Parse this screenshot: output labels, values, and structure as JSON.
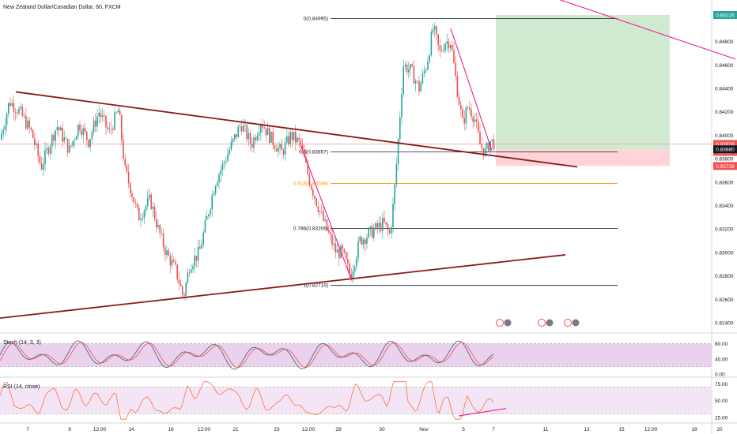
{
  "header": {
    "title": "New Zealand Dollar/Canadian Dollar, 60, FXCM"
  },
  "colors": {
    "up": "#26a69a",
    "down": "#ef5350",
    "trendline": "#8b1a1a",
    "pink_line": "#e91e8c",
    "fib_orange": "#ff9800",
    "fib_grey": "#787b86",
    "stoch_fill": "#e1bee7",
    "rsi_fill": "#f3e5f5",
    "rsi_line": "#ff7043",
    "long_profit": "#c8e6c9",
    "long_stop": "#ffcdd2"
  },
  "chart_data": {
    "type": "candlestick",
    "symbol": "New Zealand Dollar/Canadian Dollar, 60, FXCM",
    "ylim": [
      0.8234,
      0.851
    ],
    "y_ticks": [
      "0.85026",
      "0.84800",
      "0.84600",
      "0.84400",
      "0.84200",
      "0.84000",
      "0.83926",
      "0.83880",
      "0.83800",
      "0.83738",
      "0.83600",
      "0.83400",
      "0.83200",
      "0.83000",
      "0.82800",
      "0.82600",
      "0.82400"
    ],
    "price_labels": {
      "target": "0.85026",
      "last_close": "0.83926",
      "countdown": "22:11",
      "entry": "0.83880",
      "stop": "0.83738"
    },
    "x_ticks": [
      "7",
      "9",
      "12:00",
      "14",
      "16",
      "12:00",
      "21",
      "23",
      "12:00",
      "28",
      "30",
      "Nov",
      "5",
      "7",
      "11",
      "13",
      "15",
      "12:00",
      "18",
      "20"
    ],
    "price_path": [
      [
        0,
        0.8396
      ],
      [
        12,
        0.8429
      ],
      [
        25,
        0.842
      ],
      [
        40,
        0.8402
      ],
      [
        52,
        0.8373
      ],
      [
        62,
        0.8391
      ],
      [
        72,
        0.8408
      ],
      [
        88,
        0.8387
      ],
      [
        100,
        0.841
      ],
      [
        112,
        0.8395
      ],
      [
        125,
        0.842
      ],
      [
        138,
        0.8402
      ],
      [
        150,
        0.8422
      ],
      [
        158,
        0.837
      ],
      [
        165,
        0.8355
      ],
      [
        175,
        0.833
      ],
      [
        190,
        0.8345
      ],
      [
        200,
        0.832
      ],
      [
        210,
        0.83
      ],
      [
        222,
        0.8285
      ],
      [
        232,
        0.8262
      ],
      [
        240,
        0.829
      ],
      [
        252,
        0.83
      ],
      [
        262,
        0.833
      ],
      [
        272,
        0.836
      ],
      [
        282,
        0.8375
      ],
      [
        295,
        0.8395
      ],
      [
        305,
        0.841
      ],
      [
        318,
        0.8392
      ],
      [
        330,
        0.8412
      ],
      [
        342,
        0.8398
      ],
      [
        356,
        0.8385
      ],
      [
        368,
        0.84
      ],
      [
        380,
        0.8392
      ],
      [
        392,
        0.836
      ],
      [
        402,
        0.834
      ],
      [
        414,
        0.8318
      ],
      [
        425,
        0.83
      ],
      [
        433,
        0.83
      ],
      [
        443,
        0.828
      ],
      [
        455,
        0.831
      ],
      [
        465,
        0.8315
      ],
      [
        475,
        0.832
      ],
      [
        485,
        0.8325
      ],
      [
        493,
        0.8315
      ],
      [
        498,
        0.8345
      ],
      [
        503,
        0.839
      ],
      [
        510,
        0.846
      ],
      [
        520,
        0.8455
      ],
      [
        530,
        0.844
      ],
      [
        540,
        0.8462
      ],
      [
        548,
        0.8492
      ],
      [
        556,
        0.847
      ],
      [
        563,
        0.848
      ],
      [
        570,
        0.848
      ],
      [
        578,
        0.844
      ],
      [
        585,
        0.841
      ],
      [
        592,
        0.8425
      ],
      [
        600,
        0.8415
      ],
      [
        607,
        0.8392
      ],
      [
        614,
        0.8385
      ],
      [
        620,
        0.8395
      ],
      [
        626,
        0.8393
      ]
    ],
    "trendlines": [
      {
        "name": "upper-resistance",
        "points": [
          [
            20,
            0.8437
          ],
          [
            730,
            0.8373
          ]
        ]
      },
      {
        "name": "lower-support",
        "points": [
          [
            0,
            0.8244
          ],
          [
            715,
            0.8298
          ]
        ]
      },
      {
        "name": "pink-trend-top",
        "points": [
          [
            645,
            0.853
          ],
          [
            930,
            0.8465
          ]
        ]
      },
      {
        "name": "pink-down-1",
        "points": [
          [
            380,
            0.8392
          ],
          [
            445,
            0.8276
          ]
        ]
      },
      {
        "name": "pink-down-2",
        "points": [
          [
            570,
            0.8491
          ],
          [
            622,
            0.8387
          ]
        ]
      }
    ],
    "fibonacci": [
      {
        "label": "0(0.84995)",
        "price": 0.84995
      },
      {
        "label": "0.5(0.83857)",
        "price": 0.83857
      },
      {
        "label": "0.618(0.83589)",
        "price": 0.83589
      },
      {
        "label": "0.786(0.83206)",
        "price": 0.83206
      },
      {
        "label": "1(0.82719)",
        "price": 0.82719
      }
    ],
    "long_position": {
      "entry": 0.8388,
      "target": 0.85026,
      "stop": 0.83738
    },
    "stoch": {
      "label": "Stoch (14, 3, 3)",
      "ylim": [
        0,
        100
      ],
      "ticks": [
        "80.00",
        "40.00",
        "0.00"
      ],
      "bands": [
        20,
        80
      ]
    },
    "rsi": {
      "label": "RSI (14, close)",
      "ylim": [
        20,
        80
      ],
      "ticks": [
        "75.00",
        "50.00",
        "25.00"
      ],
      "bands": [
        30,
        70
      ]
    }
  }
}
